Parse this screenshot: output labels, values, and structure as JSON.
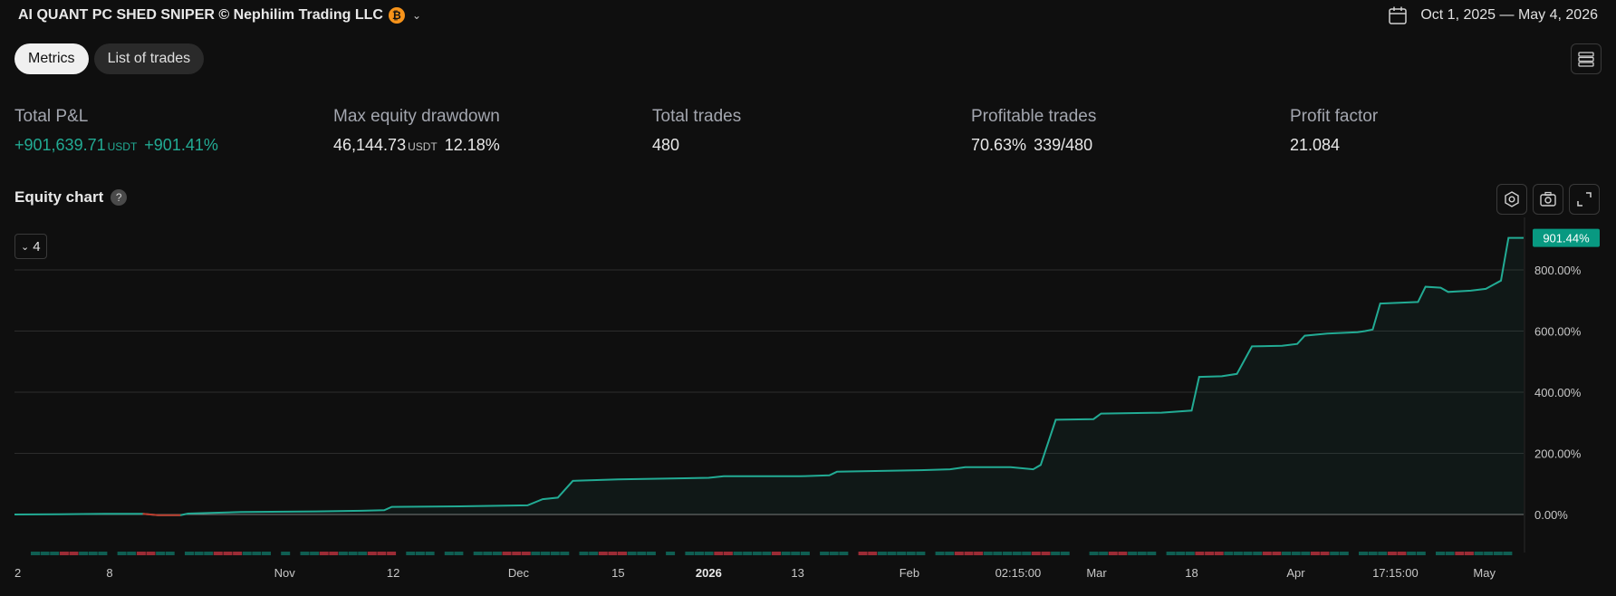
{
  "header": {
    "strategy_title": "AI QUANT PC SHED SNIPER © Nephilim Trading LLC",
    "coin_icon": "bitcoin-icon",
    "date_range": "Oct 1, 2025 — May 4, 2026"
  },
  "tabs": [
    {
      "label": "Metrics",
      "active": true
    },
    {
      "label": "List of trades",
      "active": false
    }
  ],
  "metrics": {
    "total_pnl": {
      "label": "Total P&L",
      "value": "+901,639.71",
      "unit": "USDT",
      "percent": "+901.41%"
    },
    "max_drawdown": {
      "label": "Max equity drawdown",
      "value": "46,144.73",
      "unit": "USDT",
      "percent": "12.18%"
    },
    "total_trades": {
      "label": "Total trades",
      "value": "480"
    },
    "profitable_trades": {
      "label": "Profitable trades",
      "percent": "70.63%",
      "ratio": "339/480"
    },
    "profit_factor": {
      "label": "Profit factor",
      "value": "21.084"
    }
  },
  "equity_chart": {
    "title": "Equity chart",
    "help_icon": "?",
    "collapse_count": "4",
    "tools": [
      "settings-icon",
      "camera-icon",
      "expand-icon"
    ]
  },
  "colors": {
    "accent": "#22ab94",
    "loss": "#9b2b35",
    "background": "#0f0f0f",
    "label_bg": "#089981"
  },
  "chart_data": {
    "type": "area",
    "ylabel_unit": "%",
    "ylim": [
      -20,
      920
    ],
    "yticks": [
      "0.00%",
      "200.00%",
      "400.00%",
      "600.00%",
      "800.00%"
    ],
    "ytick_values": [
      0,
      200,
      400,
      600,
      800
    ],
    "last_value_label": "901.44%",
    "x_labels": [
      {
        "text": "2",
        "t": 0.0,
        "bold": false
      },
      {
        "text": "8",
        "t": 0.063,
        "bold": false
      },
      {
        "text": "Nov",
        "t": 0.179,
        "bold": false
      },
      {
        "text": "12",
        "t": 0.251,
        "bold": false
      },
      {
        "text": "Dec",
        "t": 0.334,
        "bold": false
      },
      {
        "text": "15",
        "t": 0.4,
        "bold": false
      },
      {
        "text": "2026",
        "t": 0.46,
        "bold": true
      },
      {
        "text": "13",
        "t": 0.519,
        "bold": false
      },
      {
        "text": "Feb",
        "t": 0.593,
        "bold": false
      },
      {
        "text": "02:15:00",
        "t": 0.665,
        "bold": false
      },
      {
        "text": "Mar",
        "t": 0.717,
        "bold": false
      },
      {
        "text": "18",
        "t": 0.78,
        "bold": false
      },
      {
        "text": "Apr",
        "t": 0.849,
        "bold": false
      },
      {
        "text": "17:15:00",
        "t": 0.915,
        "bold": false
      },
      {
        "text": "May",
        "t": 0.974,
        "bold": false
      }
    ],
    "series": [
      {
        "points": [
          [
            0,
            0
          ],
          [
            0.03,
            1
          ],
          [
            0.06,
            2
          ],
          [
            0.085,
            2
          ],
          [
            0.095,
            -2
          ],
          [
            0.11,
            -2
          ],
          [
            0.115,
            3
          ],
          [
            0.13,
            5
          ],
          [
            0.15,
            8
          ],
          [
            0.2,
            10
          ],
          [
            0.23,
            12
          ],
          [
            0.245,
            14
          ],
          [
            0.25,
            25
          ],
          [
            0.3,
            27
          ],
          [
            0.34,
            30
          ],
          [
            0.35,
            50
          ],
          [
            0.36,
            55
          ],
          [
            0.37,
            110
          ],
          [
            0.4,
            115
          ],
          [
            0.46,
            120
          ],
          [
            0.47,
            125
          ],
          [
            0.52,
            125
          ],
          [
            0.54,
            128
          ],
          [
            0.545,
            140
          ],
          [
            0.6,
            145
          ],
          [
            0.62,
            148
          ],
          [
            0.63,
            155
          ],
          [
            0.66,
            155
          ],
          [
            0.675,
            148
          ],
          [
            0.68,
            162
          ],
          [
            0.69,
            310
          ],
          [
            0.715,
            312
          ],
          [
            0.72,
            330
          ],
          [
            0.76,
            333
          ],
          [
            0.78,
            340
          ],
          [
            0.785,
            450
          ],
          [
            0.8,
            452
          ],
          [
            0.81,
            460
          ],
          [
            0.82,
            550
          ],
          [
            0.84,
            552
          ],
          [
            0.85,
            558
          ],
          [
            0.855,
            585
          ],
          [
            0.87,
            592
          ],
          [
            0.89,
            596
          ],
          [
            0.895,
            600
          ],
          [
            0.9,
            605
          ],
          [
            0.905,
            690
          ],
          [
            0.93,
            695
          ],
          [
            0.935,
            745
          ],
          [
            0.945,
            742
          ],
          [
            0.95,
            728
          ],
          [
            0.965,
            732
          ],
          [
            0.975,
            738
          ],
          [
            0.985,
            765
          ],
          [
            0.99,
            905
          ],
          [
            1.0,
            905
          ]
        ]
      }
    ],
    "trade_bars": {
      "pattern": "gggrrggg-ggrrgg-gggrrrggg-g-ggrrgggrrr-ggg-gg-gggrrrgggg-ggrrrggg-g-gggrrggggrggg-ggg-rrggggg-ggrrrgggggrrgg--ggrrggg-gggrrrggggrrgggrrgg-gggrrgg-ggrrgggg"
    }
  }
}
